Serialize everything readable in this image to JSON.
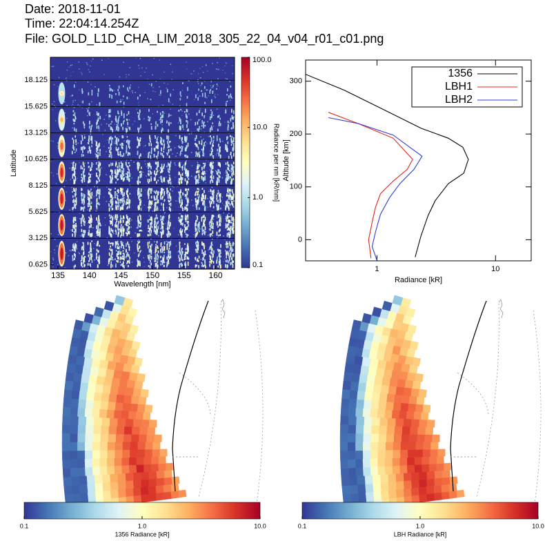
{
  "header": {
    "date": "Date: 2018-11-01",
    "time": "Time: 22:04:14.254Z",
    "file": "File: GOLD_L1D_CHA_LIM_2018_305_22_04_v04_r01_c01.png"
  },
  "chart_data": [
    {
      "type": "heatmap",
      "x_label": "Wavelength [nm]",
      "y_label": "Latitude",
      "xlim": [
        133.8,
        163
      ],
      "xticks": [
        135,
        140,
        145,
        150,
        155,
        160
      ],
      "ylim": [
        0.2,
        20.3
      ],
      "yticks": [
        0.625,
        3.125,
        5.625,
        8.125,
        10.625,
        13.125,
        15.625,
        18.125
      ],
      "colorbar": {
        "label": "Radiance per nm [kR/nm]",
        "log": true,
        "lim": [
          0.1,
          100
        ],
        "ticks": [
          0.1,
          {
            "value": 1,
            "label": "1.0"
          },
          {
            "value": 10,
            "label": "10.0"
          },
          {
            "value": 100,
            "label": "100.0"
          }
        ],
        "colors": [
          "#313695",
          "#4575b4",
          "#74add1",
          "#abd9e9",
          "#e0f3f8",
          "#ffffbf",
          "#fee090",
          "#fdae61",
          "#f46d43",
          "#d73027",
          "#a50026"
        ]
      }
    },
    {
      "type": "line",
      "x_label": "Radiance [kR]",
      "y_label": "Altitude [km]",
      "xlog": true,
      "xlim": [
        0.25,
        20
      ],
      "xticks": [
        1,
        10
      ],
      "ylim": [
        -40,
        340
      ],
      "yticks": [
        0,
        100,
        200,
        300
      ],
      "legend": "upper right",
      "series": [
        {
          "name": "1356",
          "color": "#000000",
          "x": [
            0.25,
            0.53,
            1.19,
            2.35,
            4.0,
            5.3,
            5.9,
            5.4,
            4.0,
            3.1,
            2.7,
            2.35,
            2.1
          ],
          "y": [
            313,
            283,
            244,
            211,
            192,
            175,
            152,
            126,
            106,
            74,
            46,
            7,
            -33
          ]
        },
        {
          "name": "LBH1",
          "color": "#e8201c",
          "x": [
            0.39,
            0.69,
            1.37,
            2.0,
            1.8,
            1.37,
            1.07,
            0.97,
            0.91,
            0.85,
            0.89
          ],
          "y": [
            241,
            220,
            192,
            152,
            133,
            111,
            87,
            61,
            33,
            0,
            -35
          ]
        },
        {
          "name": "LBH2",
          "color": "#2b3cd8",
          "x": [
            0.39,
            0.69,
            1.37,
            2.4,
            2.05,
            1.56,
            1.28,
            1.07,
            0.97,
            0.91,
            1.0
          ],
          "y": [
            231,
            220,
            198,
            158,
            133,
            106,
            80,
            48,
            14,
            -13,
            -39
          ]
        }
      ]
    },
    {
      "type": "map",
      "colorbar": {
        "label": "1356 Radiance [kR]",
        "log": true,
        "lim": [
          0.1,
          10
        ],
        "ticks": [
          0.1,
          {
            "value": 1,
            "label": "1.0"
          },
          {
            "value": 10,
            "label": "10.0"
          }
        ],
        "colors": [
          "#313695",
          "#4575b4",
          "#74add1",
          "#abd9e9",
          "#e0f3f8",
          "#ffffbf",
          "#fee090",
          "#fdae61",
          "#f46d43",
          "#d73027",
          "#a50026"
        ]
      }
    },
    {
      "type": "map",
      "colorbar": {
        "label": "LBH Radiance [kR]",
        "log": true,
        "lim": [
          0.1,
          10
        ],
        "ticks": [
          0.1,
          {
            "value": 1,
            "label": "1.0"
          },
          {
            "value": 10,
            "label": "10.0"
          }
        ],
        "colors": [
          "#313695",
          "#4575b4",
          "#74add1",
          "#abd9e9",
          "#e0f3f8",
          "#ffffbf",
          "#fee090",
          "#fdae61",
          "#f46d43",
          "#d73027",
          "#a50026"
        ]
      }
    }
  ]
}
